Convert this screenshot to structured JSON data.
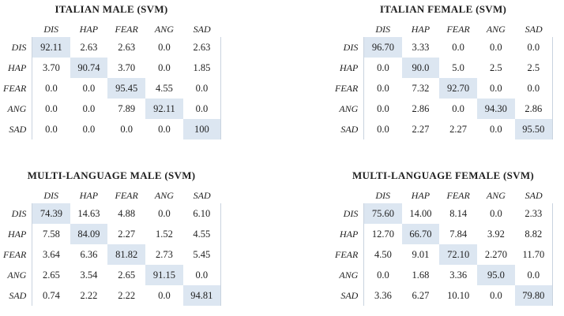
{
  "colors": {
    "highlight": "#dce6f1",
    "divider": "#c9d3df",
    "text": "#1f1f1f",
    "background": "#ffffff"
  },
  "tables": [
    {
      "id": "italian-male",
      "title": "ITALIAN MALE (SVM)",
      "columns": [
        "DIS",
        "HAP",
        "FEAR",
        "ANG",
        "SAD"
      ],
      "rows": [
        {
          "label": "DIS",
          "values": [
            "92.11",
            "2.63",
            "2.63",
            "0.0",
            "2.63"
          ]
        },
        {
          "label": "HAP",
          "values": [
            "3.70",
            "90.74",
            "3.70",
            "0.0",
            "1.85"
          ]
        },
        {
          "label": "FEAR",
          "values": [
            "0.0",
            "0.0",
            "95.45",
            "4.55",
            "0.0"
          ]
        },
        {
          "label": "ANG",
          "values": [
            "0.0",
            "0.0",
            "7.89",
            "92.11",
            "0.0"
          ]
        },
        {
          "label": "SAD",
          "values": [
            "0.0",
            "0.0",
            "0.0",
            "0.0",
            "100"
          ]
        }
      ]
    },
    {
      "id": "italian-female",
      "title": "ITALIAN FEMALE (SVM)",
      "columns": [
        "DIS",
        "HAP",
        "FEAR",
        "ANG",
        "SAD"
      ],
      "rows": [
        {
          "label": "DIS",
          "values": [
            "96.70",
            "3.33",
            "0.0",
            "0.0",
            "0.0"
          ]
        },
        {
          "label": "HAP",
          "values": [
            "0.0",
            "90.0",
            "5.0",
            "2.5",
            "2.5"
          ]
        },
        {
          "label": "FEAR",
          "values": [
            "0.0",
            "7.32",
            "92.70",
            "0.0",
            "0.0"
          ]
        },
        {
          "label": "ANG",
          "values": [
            "0.0",
            "2.86",
            "0.0",
            "94.30",
            "2.86"
          ]
        },
        {
          "label": "SAD",
          "values": [
            "0.0",
            "2.27",
            "2.27",
            "0.0",
            "95.50"
          ]
        }
      ]
    },
    {
      "id": "multi-language-male",
      "title": "MULTI-LANGUAGE MALE (SVM)",
      "columns": [
        "DIS",
        "HAP",
        "FEAR",
        "ANG",
        "SAD"
      ],
      "rows": [
        {
          "label": "DIS",
          "values": [
            "74.39",
            "14.63",
            "4.88",
            "0.0",
            "6.10"
          ]
        },
        {
          "label": "HAP",
          "values": [
            "7.58",
            "84.09",
            "2.27",
            "1.52",
            "4.55"
          ]
        },
        {
          "label": "FEAR",
          "values": [
            "3.64",
            "6.36",
            "81.82",
            "2.73",
            "5.45"
          ]
        },
        {
          "label": "ANG",
          "values": [
            "2.65",
            "3.54",
            "2.65",
            "91.15",
            "0.0"
          ]
        },
        {
          "label": "SAD",
          "values": [
            "0.74",
            "2.22",
            "2.22",
            "0.0",
            "94.81"
          ]
        }
      ]
    },
    {
      "id": "multi-language-female",
      "title": "MULTI-LANGUAGE FEMALE (SVM)",
      "columns": [
        "DIS",
        "HAP",
        "FEAR",
        "ANG",
        "SAD"
      ],
      "rows": [
        {
          "label": "DIS",
          "values": [
            "75.60",
            "14.00",
            "8.14",
            "0.0",
            "2.33"
          ]
        },
        {
          "label": "HAP",
          "values": [
            "12.70",
            "66.70",
            "7.84",
            "3.92",
            "8.82"
          ]
        },
        {
          "label": "FEAR",
          "values": [
            "4.50",
            "9.01",
            "72.10",
            "2.270",
            "11.70"
          ]
        },
        {
          "label": "ANG",
          "values": [
            "0.0",
            "1.68",
            "3.36",
            "95.0",
            "0.0"
          ]
        },
        {
          "label": "SAD",
          "values": [
            "3.36",
            "6.27",
            "10.10",
            "0.0",
            "79.80"
          ]
        }
      ]
    }
  ]
}
